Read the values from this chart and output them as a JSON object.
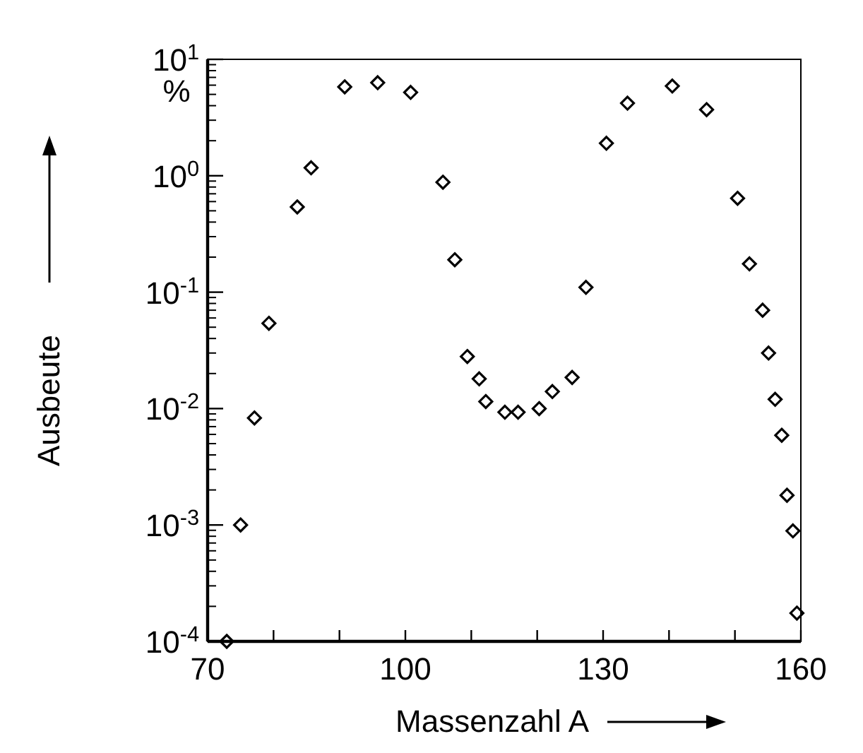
{
  "chart_data": {
    "type": "scatter",
    "xlabel": "Massenzahl A",
    "ylabel": "Ausbeute",
    "annotations": [
      "%"
    ],
    "log": "y",
    "marker": "diamond",
    "xlim": [
      70,
      160
    ],
    "xticks": [
      70,
      {
        "value": 80,
        "label": null
      },
      {
        "value": 90,
        "label": null
      },
      100,
      {
        "value": 110,
        "label": null
      },
      {
        "value": 120,
        "label": null
      },
      130,
      {
        "value": 140,
        "label": null
      },
      {
        "value": 150,
        "label": null
      },
      160
    ],
    "ylim": [
      0.0001,
      10
    ],
    "yticks": [
      {
        "value": 0.0001,
        "label": "10$^{-4}$"
      },
      {
        "value": 0.001,
        "label": "10$^{-3}$"
      },
      {
        "value": 0.01,
        "label": "10$^{-2}$"
      },
      {
        "value": 0.1,
        "label": "10$^{-1}$"
      },
      {
        "value": 1,
        "label": "10$^{0}$"
      },
      {
        "value": 10,
        "label": "10$^{1}$"
      }
    ],
    "series": [
      {
        "color": "#000000",
        "x": [
          72.9,
          75.0,
          77.1,
          79.3,
          83.6,
          85.7,
          90.8,
          95.8,
          100.8,
          105.7,
          107.5,
          109.4,
          111.2,
          112.2,
          115.1,
          117.1,
          120.3,
          122.3,
          125.3,
          127.4,
          130.5,
          133.7,
          140.5,
          145.7,
          150.4,
          152.2,
          154.2,
          155.1,
          156.1,
          157.1,
          157.9,
          158.8,
          159.4
        ],
        "values": [
          0.0001,
          0.001,
          0.0083,
          0.054,
          0.54,
          1.17,
          5.8,
          6.3,
          5.2,
          0.88,
          0.19,
          0.028,
          0.018,
          0.0115,
          0.0093,
          0.0093,
          0.01,
          0.014,
          0.0185,
          0.11,
          1.9,
          4.2,
          5.9,
          3.7,
          0.64,
          0.175,
          0.07,
          0.03,
          0.012,
          0.0059,
          0.0018,
          0.00089,
          0.000175
        ]
      }
    ]
  }
}
